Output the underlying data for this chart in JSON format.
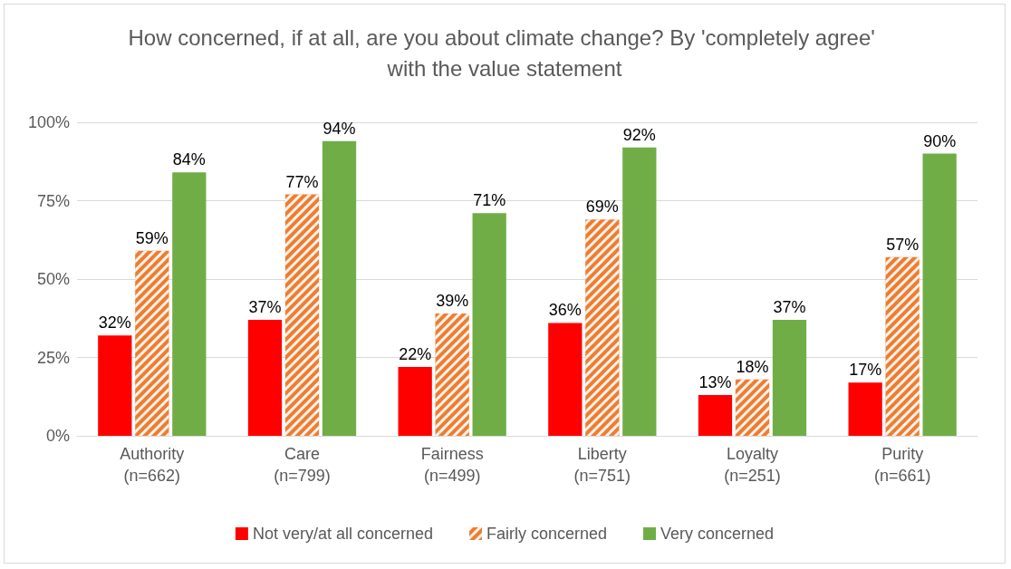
{
  "chart_data": {
    "type": "bar",
    "title": "How concerned, if at all, are you about climate change? By 'completely agree' with the value statement",
    "categories": [
      "Authority\n(n=662)",
      "Care\n(n=799)",
      "Fairness\n(n=499)",
      "Liberty\n(n=751)",
      "Loyalty\n(n=251)",
      "Purity\n(n=661)"
    ],
    "series": [
      {
        "name": "Not very/at all concerned",
        "color": "#ff0000",
        "values": [
          32,
          37,
          22,
          36,
          13,
          17
        ],
        "value_labels": [
          "32%",
          "37%",
          "22%",
          "36%",
          "13%",
          "17%"
        ]
      },
      {
        "name": "Fairly concerned",
        "color": "#ed7d31",
        "values": [
          59,
          77,
          39,
          69,
          18,
          57
        ],
        "value_labels": [
          "59%",
          "77%",
          "39%",
          "69%",
          "18%",
          "57%"
        ]
      },
      {
        "name": "Very concerned",
        "color": "#70ad47",
        "values": [
          84,
          94,
          71,
          92,
          37,
          90
        ],
        "value_labels": [
          "84%",
          "94%",
          "71%",
          "92%",
          "37%",
          "90%"
        ]
      }
    ],
    "ylim": [
      0,
      100
    ],
    "yticks": [
      {
        "value": 0,
        "label": "0%"
      },
      {
        "value": 25,
        "label": "25%"
      },
      {
        "value": 50,
        "label": "50%"
      },
      {
        "value": 75,
        "label": "75%"
      },
      {
        "value": 100,
        "label": "100%"
      }
    ],
    "grid": "y",
    "legend": "bottom"
  }
}
